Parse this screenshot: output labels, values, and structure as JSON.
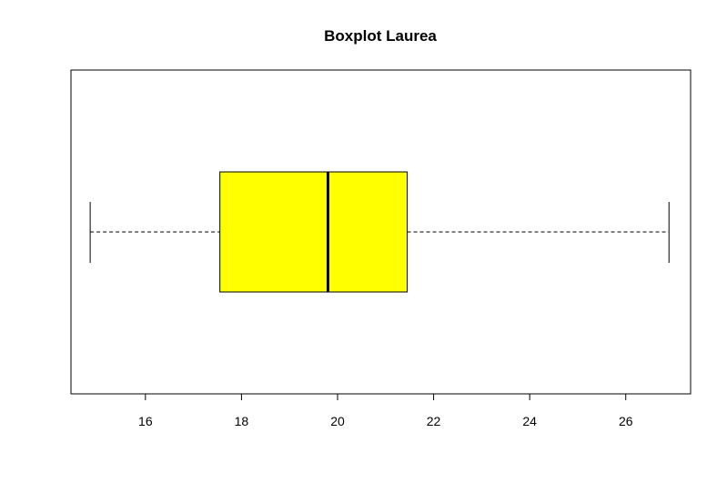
{
  "chart_data": {
    "type": "boxplot",
    "title": "Boxplot Laurea",
    "xlabel": "",
    "ylabel": "",
    "orientation": "horizontal",
    "xlim": [
      14.45,
      27.35
    ],
    "ticks": [
      16,
      18,
      20,
      22,
      24,
      26
    ],
    "tick_labels": [
      "16",
      "18",
      "20",
      "22",
      "24",
      "26"
    ],
    "grid": false,
    "stats": {
      "min": 14.85,
      "q1": 17.55,
      "median": 19.8,
      "q3": 21.45,
      "max": 26.9
    },
    "box_color": "#ffff00"
  }
}
